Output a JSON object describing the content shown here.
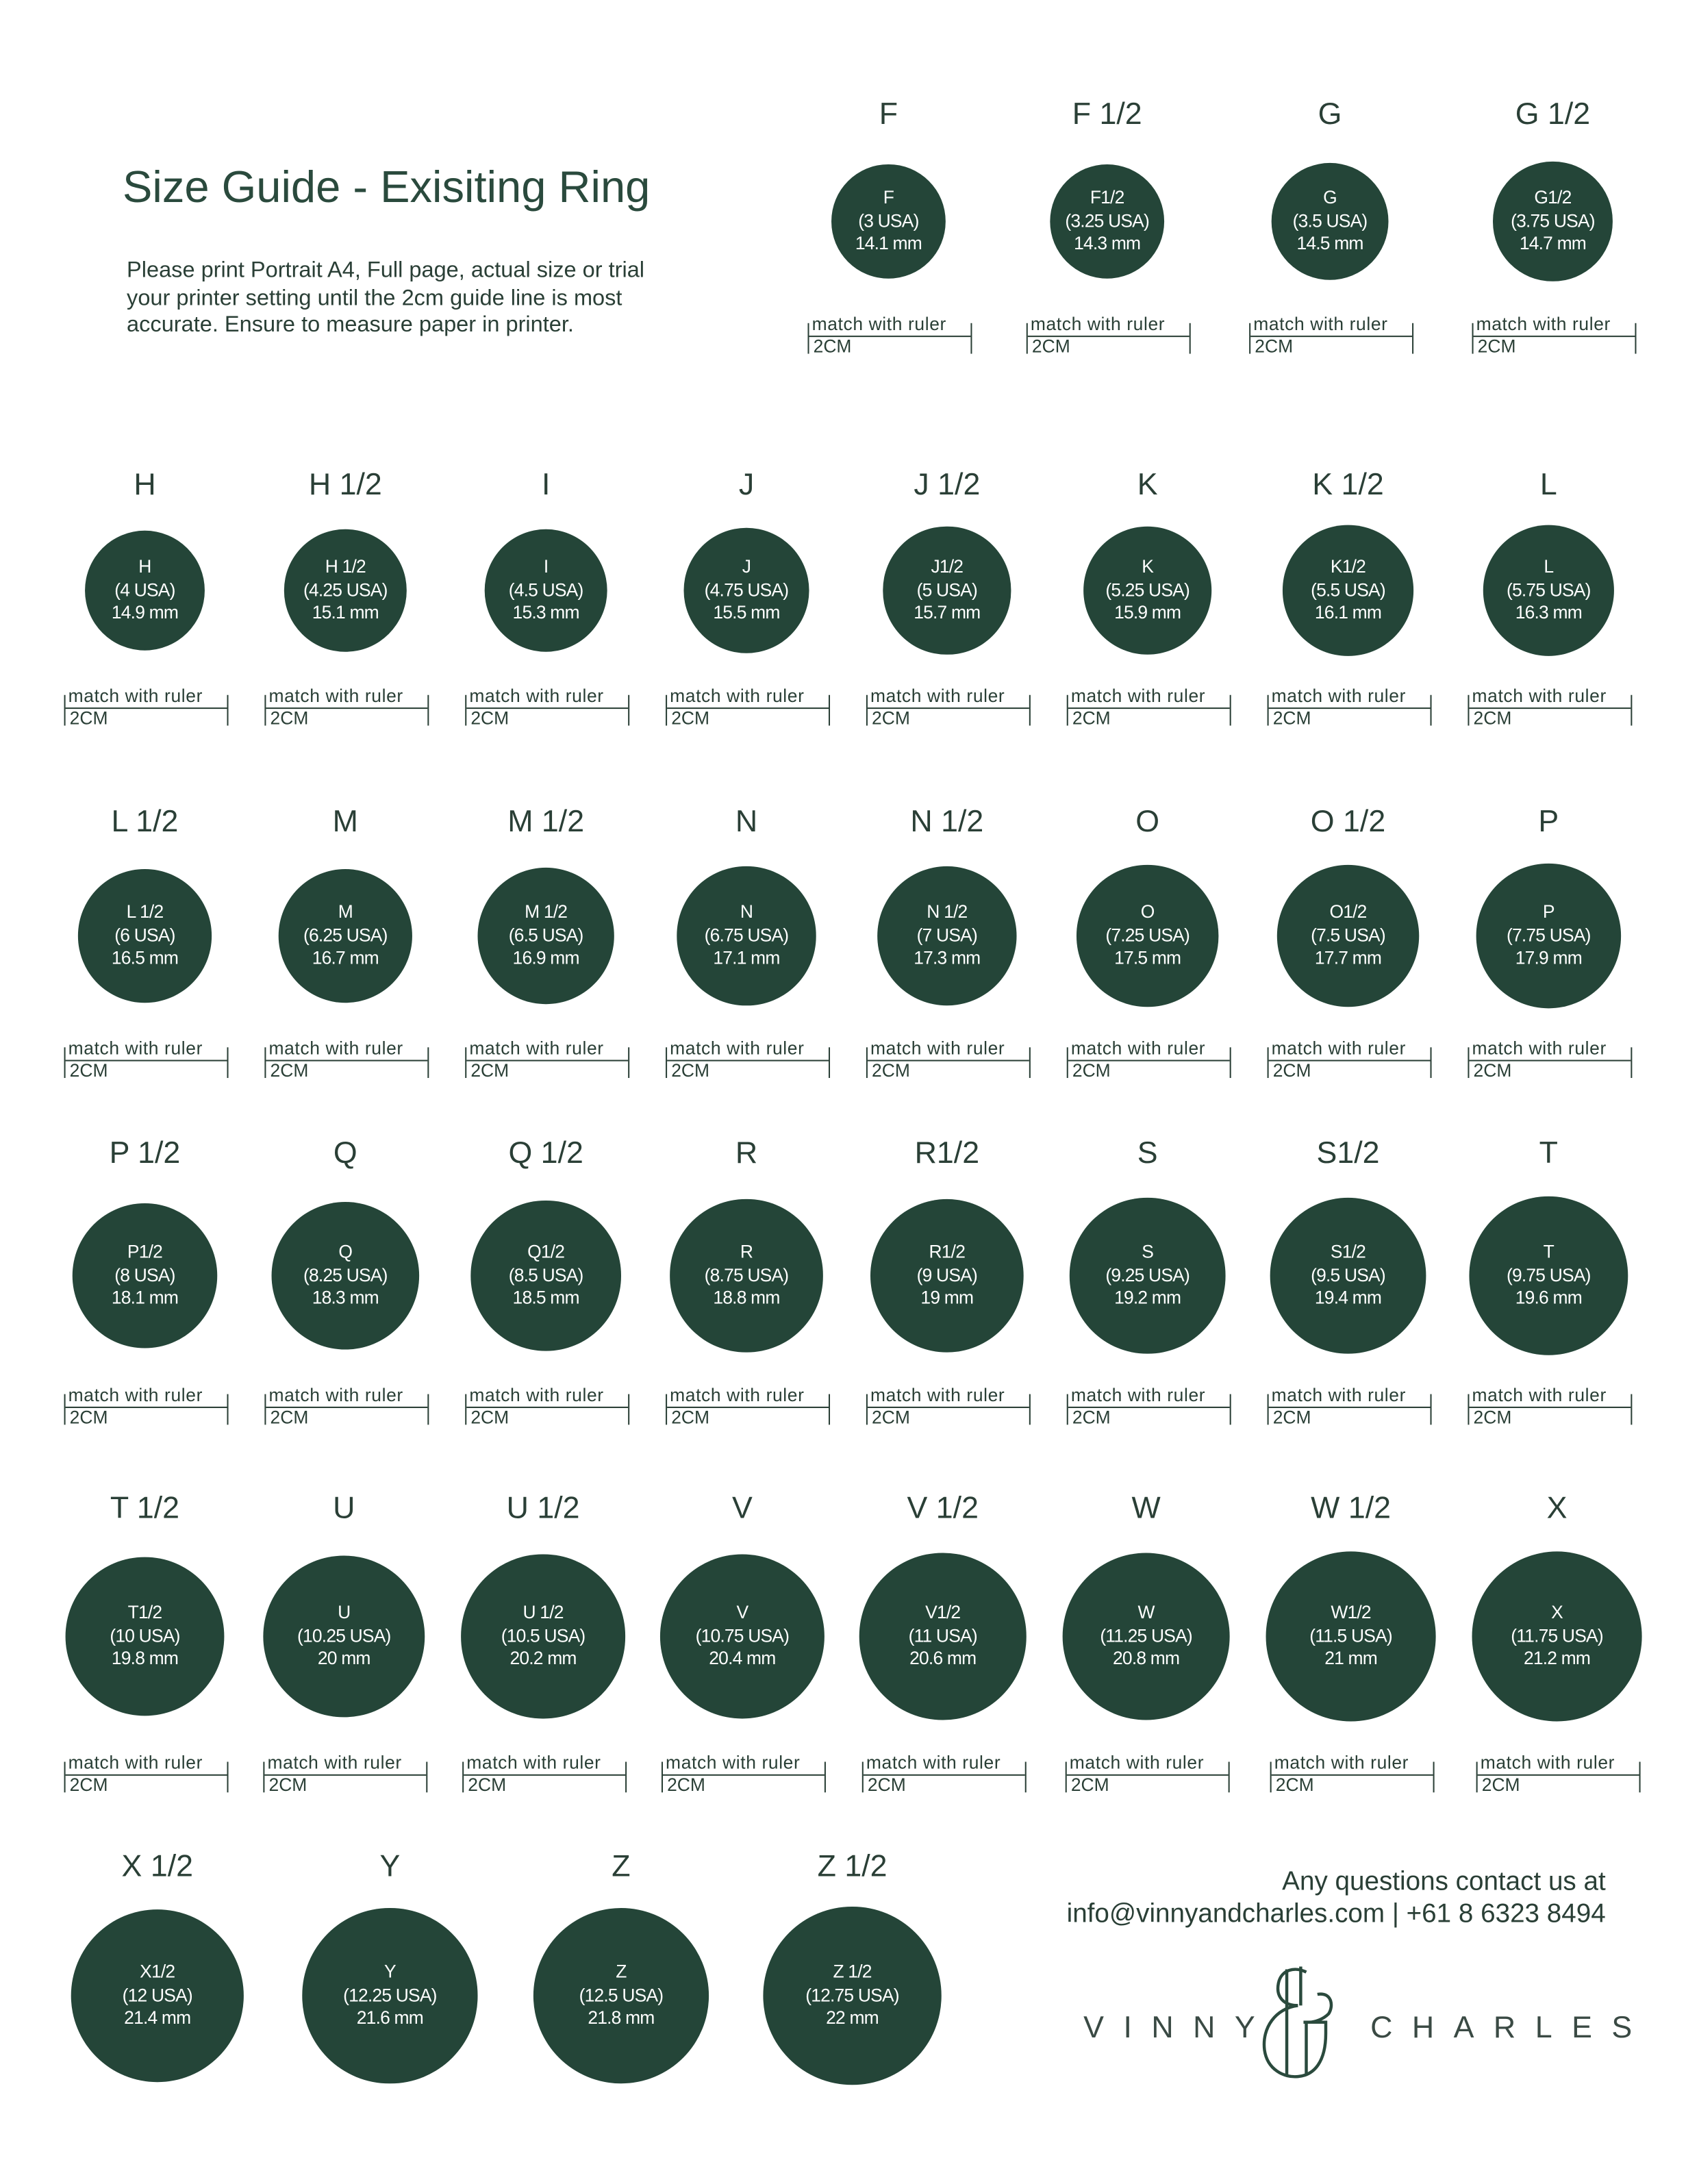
{
  "header": {
    "title": "Size Guide  -  Exisiting Ring",
    "intro": "Please print Portrait  A4, Full page, actual size or trial your printer setting until the 2cm guide line is most accurate. Ensure to measure paper in printer."
  },
  "colors": {
    "circle": "#244538",
    "text": "#2a3f36"
  },
  "ruler": {
    "top_text": "match with ruler",
    "bottom_text": "2CM"
  },
  "rows": [
    [
      {
        "label": "F",
        "name": "F",
        "usa": "(3 USA)",
        "mm": "14.1 mm"
      },
      {
        "label": "F 1/2",
        "name": "F1/2",
        "usa": "(3.25 USA)",
        "mm": "14.3 mm"
      },
      {
        "label": "G",
        "name": "G",
        "usa": "(3.5 USA)",
        "mm": "14.5 mm"
      },
      {
        "label": "G 1/2",
        "name": "G1/2",
        "usa": "(3.75 USA)",
        "mm": "14.7 mm"
      }
    ],
    [
      {
        "label": "H",
        "name": "H",
        "usa": "(4 USA)",
        "mm": "14.9 mm"
      },
      {
        "label": "H 1/2",
        "name": "H 1/2",
        "usa": "(4.25 USA)",
        "mm": "15.1 mm"
      },
      {
        "label": "I",
        "name": "I",
        "usa": "(4.5 USA)",
        "mm": "15.3 mm"
      },
      {
        "label": "J",
        "name": "J",
        "usa": "(4.75 USA)",
        "mm": "15.5 mm"
      },
      {
        "label": "J 1/2",
        "name": "J1/2",
        "usa": "(5 USA)",
        "mm": "15.7 mm"
      },
      {
        "label": "K",
        "name": "K",
        "usa": "(5.25 USA)",
        "mm": "15.9 mm"
      },
      {
        "label": "K 1/2",
        "name": "K1/2",
        "usa": "(5.5 USA)",
        "mm": "16.1 mm"
      },
      {
        "label": "L",
        "name": "L",
        "usa": "(5.75 USA)",
        "mm": "16.3 mm"
      }
    ],
    [
      {
        "label": "L 1/2",
        "name": "L 1/2",
        "usa": "(6 USA)",
        "mm": "16.5 mm"
      },
      {
        "label": "M",
        "name": "M",
        "usa": "(6.25 USA)",
        "mm": "16.7 mm"
      },
      {
        "label": "M 1/2",
        "name": "M 1/2",
        "usa": "(6.5 USA)",
        "mm": "16.9 mm"
      },
      {
        "label": "N",
        "name": "N",
        "usa": "(6.75 USA)",
        "mm": "17.1 mm"
      },
      {
        "label": "N 1/2",
        "name": "N 1/2",
        "usa": "(7 USA)",
        "mm": "17.3 mm"
      },
      {
        "label": "O",
        "name": "O",
        "usa": "(7.25 USA)",
        "mm": "17.5 mm"
      },
      {
        "label": "O 1/2",
        "name": "O1/2",
        "usa": "(7.5 USA)",
        "mm": "17.7 mm"
      },
      {
        "label": "P",
        "name": "P",
        "usa": "(7.75 USA)",
        "mm": "17.9 mm"
      }
    ],
    [
      {
        "label": "P 1/2",
        "name": "P1/2",
        "usa": "(8 USA)",
        "mm": "18.1 mm"
      },
      {
        "label": "Q",
        "name": "Q",
        "usa": "(8.25 USA)",
        "mm": "18.3 mm"
      },
      {
        "label": "Q 1/2",
        "name": "Q1/2",
        "usa": "(8.5 USA)",
        "mm": "18.5 mm"
      },
      {
        "label": "R",
        "name": "R",
        "usa": "(8.75 USA)",
        "mm": "18.8 mm"
      },
      {
        "label": "R1/2",
        "name": "R1/2",
        "usa": "(9 USA)",
        "mm": "19 mm"
      },
      {
        "label": "S",
        "name": "S",
        "usa": "(9.25 USA)",
        "mm": "19.2 mm"
      },
      {
        "label": "S1/2",
        "name": "S1/2",
        "usa": "(9.5 USA)",
        "mm": "19.4 mm"
      },
      {
        "label": "T",
        "name": "T",
        "usa": "(9.75 USA)",
        "mm": "19.6 mm"
      }
    ],
    [
      {
        "label": "T 1/2",
        "name": "T1/2",
        "usa": "(10 USA)",
        "mm": "19.8 mm"
      },
      {
        "label": "U",
        "name": "U",
        "usa": "(10.25 USA)",
        "mm": "20 mm"
      },
      {
        "label": "U 1/2",
        "name": "U 1/2",
        "usa": "(10.5 USA)",
        "mm": "20.2 mm"
      },
      {
        "label": "V",
        "name": "V",
        "usa": "(10.75 USA)",
        "mm": "20.4 mm"
      },
      {
        "label": "V 1/2",
        "name": "V1/2",
        "usa": "(11 USA)",
        "mm": "20.6 mm"
      },
      {
        "label": "W",
        "name": "W",
        "usa": "(11.25 USA)",
        "mm": "20.8 mm"
      },
      {
        "label": "W 1/2",
        "name": "W1/2",
        "usa": "(11.5 USA)",
        "mm": "21 mm"
      },
      {
        "label": "X",
        "name": "X",
        "usa": "(11.75 USA)",
        "mm": "21.2 mm"
      }
    ],
    [
      {
        "label": "X 1/2",
        "name": "X1/2",
        "usa": "(12 USA)",
        "mm": "21.4 mm"
      },
      {
        "label": "Y",
        "name": "Y",
        "usa": "(12.25 USA)",
        "mm": "21.6 mm"
      },
      {
        "label": "Z",
        "name": "Z",
        "usa": "(12.5 USA)",
        "mm": "21.8 mm"
      },
      {
        "label": "Z 1/2",
        "name": "Z 1/2",
        "usa": "(12.75 USA)",
        "mm": "22 mm"
      }
    ]
  ],
  "contact": {
    "line1": "Any questions contact us at",
    "line2": "info@vinnyandcharles.com |  +61 8 6323 8494"
  },
  "logo": {
    "left": "VINNY",
    "right": "CHARLES",
    "mark": "&"
  }
}
